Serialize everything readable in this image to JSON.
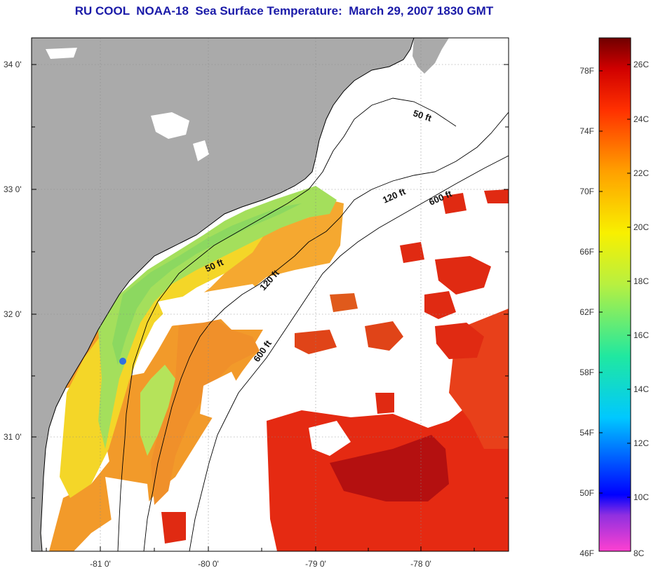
{
  "title": "RU COOL  NOAA-18  Sea Surface Temperature:  March 29, 2007 1830 GMT",
  "axes": {
    "lat_labels": [
      {
        "value": 34,
        "label": "34 0'"
      },
      {
        "value": 33,
        "label": "33 0'"
      },
      {
        "value": 32,
        "label": "32 0'"
      },
      {
        "value": 31,
        "label": "31 0'"
      }
    ],
    "lon_labels": [
      {
        "value": -81,
        "label": "-81 0'"
      },
      {
        "value": -80,
        "label": "-80 0'"
      },
      {
        "value": -79,
        "label": "-79 0'"
      },
      {
        "value": -78,
        "label": "-78 0'"
      }
    ]
  },
  "contour_labels": [
    {
      "text": "50 ft",
      "depth_ft": 50
    },
    {
      "text": "120 ft",
      "depth_ft": 120
    },
    {
      "text": "600 ft",
      "depth_ft": 600
    },
    {
      "text": "50 ft",
      "depth_ft": 50
    },
    {
      "text": "120 ft",
      "depth_ft": 120
    },
    {
      "text": "600 ft",
      "depth_ft": 600
    }
  ],
  "colorbar": {
    "fahrenheit_labels": [
      "78F",
      "74F",
      "70F",
      "66F",
      "62F",
      "58F",
      "54F",
      "50F",
      "46F"
    ],
    "celsius_labels": [
      "26C",
      "24C",
      "22C",
      "20C",
      "18C",
      "16C",
      "14C",
      "12C",
      "10C",
      "8C"
    ],
    "range_c": [
      8,
      27
    ]
  },
  "colors": {
    "land": "#aaaaaa",
    "cloud": "#ffffff",
    "title": "#1a1aa8",
    "warm": "#e02010",
    "hot": "#b01010",
    "orange": "#f08020",
    "yellow": "#f4d820",
    "green": "#a8e060"
  }
}
